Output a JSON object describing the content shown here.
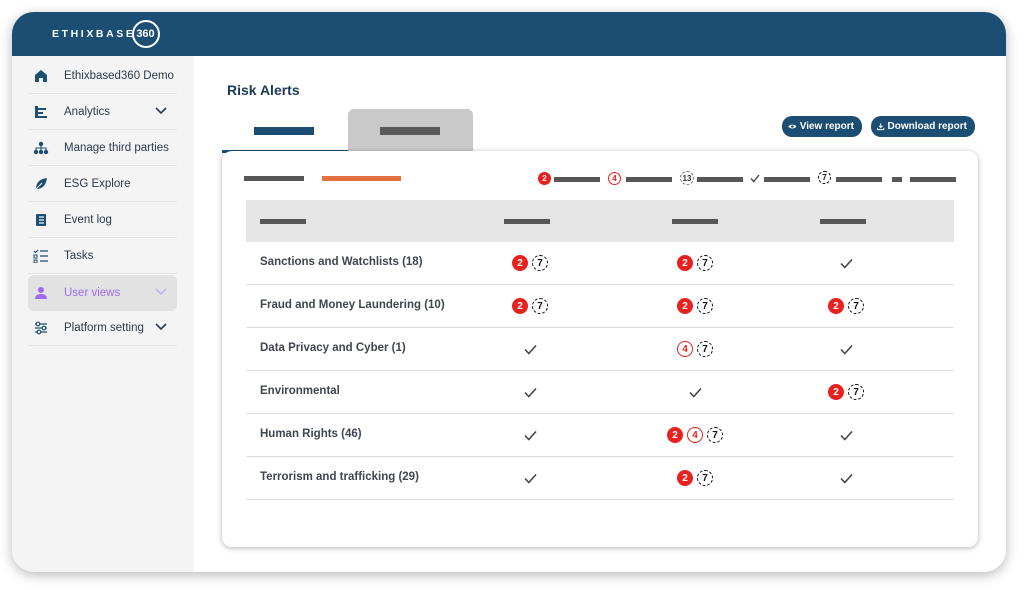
{
  "brand": {
    "name": "ETHIXBASE",
    "suffix": "360"
  },
  "sidebar": {
    "items": [
      {
        "label": "Ethixbased360 Demo",
        "icon": "home-icon"
      },
      {
        "label": "Analytics",
        "icon": "analytics-icon",
        "chevron": true
      },
      {
        "label": "Manage third parties",
        "icon": "network-icon"
      },
      {
        "label": "ESG Explore",
        "icon": "leaf-icon"
      },
      {
        "label": "Event log",
        "icon": "log-icon"
      },
      {
        "label": "Tasks",
        "icon": "tasks-icon"
      },
      {
        "label": "User views",
        "icon": "user-icon",
        "chevron": true,
        "active": true
      },
      {
        "label": "Platform setting",
        "icon": "sliders-icon",
        "chevron": true
      }
    ]
  },
  "page": {
    "title": "Risk Alerts",
    "view_report": "View report",
    "download_report": "Download report"
  },
  "legend_badges": [
    "2",
    "4",
    "13",
    "7"
  ],
  "table": {
    "rows": [
      {
        "label": "Sanctions and Watchlists (18)",
        "cells": [
          [
            "red:2",
            "dash:7"
          ],
          [
            "red:2",
            "dash:7"
          ],
          [
            "check"
          ]
        ]
      },
      {
        "label": "Fraud and Money Laundering (10)",
        "cells": [
          [
            "red:2",
            "dash:7"
          ],
          [
            "red:2",
            "dash:7"
          ],
          [
            "red:2",
            "dash:7"
          ]
        ]
      },
      {
        "label": "Data Privacy and Cyber (1)",
        "cells": [
          [
            "check"
          ],
          [
            "out:4",
            "dash:7"
          ],
          [
            "check"
          ]
        ]
      },
      {
        "label": "Environmental",
        "cells": [
          [
            "check"
          ],
          [
            "check"
          ],
          [
            "red:2",
            "dash:7"
          ]
        ]
      },
      {
        "label": "Human Rights (46)",
        "cells": [
          [
            "check"
          ],
          [
            "red:2",
            "out:4",
            "dash:7"
          ],
          [
            "check"
          ]
        ]
      },
      {
        "label": "Terrorism and trafficking (29)",
        "cells": [
          [
            "check"
          ],
          [
            "red:2",
            "dash:7"
          ],
          [
            "check"
          ]
        ]
      }
    ]
  },
  "colors": {
    "primary": "#1b4e72",
    "alert_red": "#e8211f",
    "accent_orange": "#e4703f",
    "active_purple": "#9b6cf0"
  }
}
